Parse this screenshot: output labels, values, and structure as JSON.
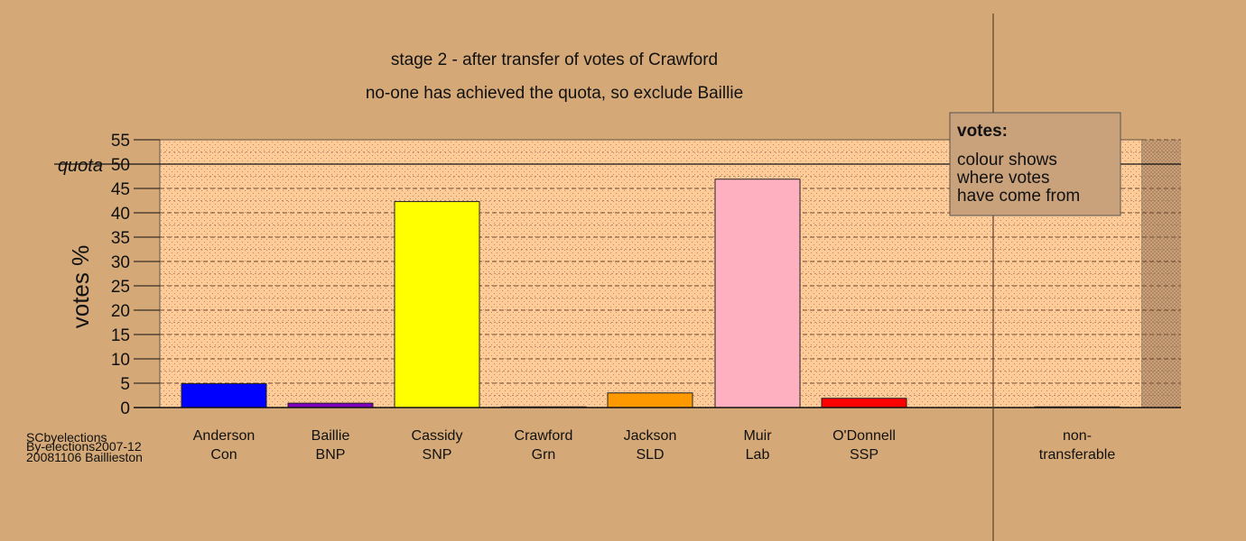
{
  "chart_data": {
    "type": "bar",
    "title": "stage 2 - after transfer of votes of Crawford",
    "subtitle": "no-one has achieved the quota, so exclude Baillie",
    "ylabel": "votes %",
    "ylim": [
      0,
      55
    ],
    "yticks": [
      0,
      5,
      10,
      15,
      20,
      25,
      30,
      35,
      40,
      45,
      50,
      55
    ],
    "quota": {
      "label": "quota",
      "value": 50
    },
    "grid": true,
    "categories": [
      {
        "name": "Anderson",
        "party": "Con",
        "value": 4.9,
        "color": "#0000ff"
      },
      {
        "name": "Baillie",
        "party": "BNP",
        "value": 0.9,
        "color": "#8000c0"
      },
      {
        "name": "Cassidy",
        "party": "SNP",
        "value": 42.3,
        "color": "#ffff00"
      },
      {
        "name": "Crawford",
        "party": "Grn",
        "value": 0,
        "color": "#00a000"
      },
      {
        "name": "Jackson",
        "party": "SLD",
        "value": 3.0,
        "color": "#ff9900"
      },
      {
        "name": "Muir",
        "party": "Lab",
        "value": 46.9,
        "color": "#ffb0c0"
      },
      {
        "name": "O'Donnell",
        "party": "SSP",
        "value": 1.9,
        "color": "#ff0000"
      },
      {
        "name": "non-",
        "party": "transferable",
        "value": 0.1,
        "color": "#996633"
      }
    ],
    "legend": {
      "title": "votes:",
      "lines": [
        "colour shows",
        "where votes",
        "have come from"
      ],
      "placement": "top-right"
    },
    "credits": [
      "SCbyelections",
      "By-elections2007-12",
      "20081106 Baillieston"
    ],
    "colors": {
      "background": "#d4a977",
      "plot": "#ffcc99"
    }
  }
}
